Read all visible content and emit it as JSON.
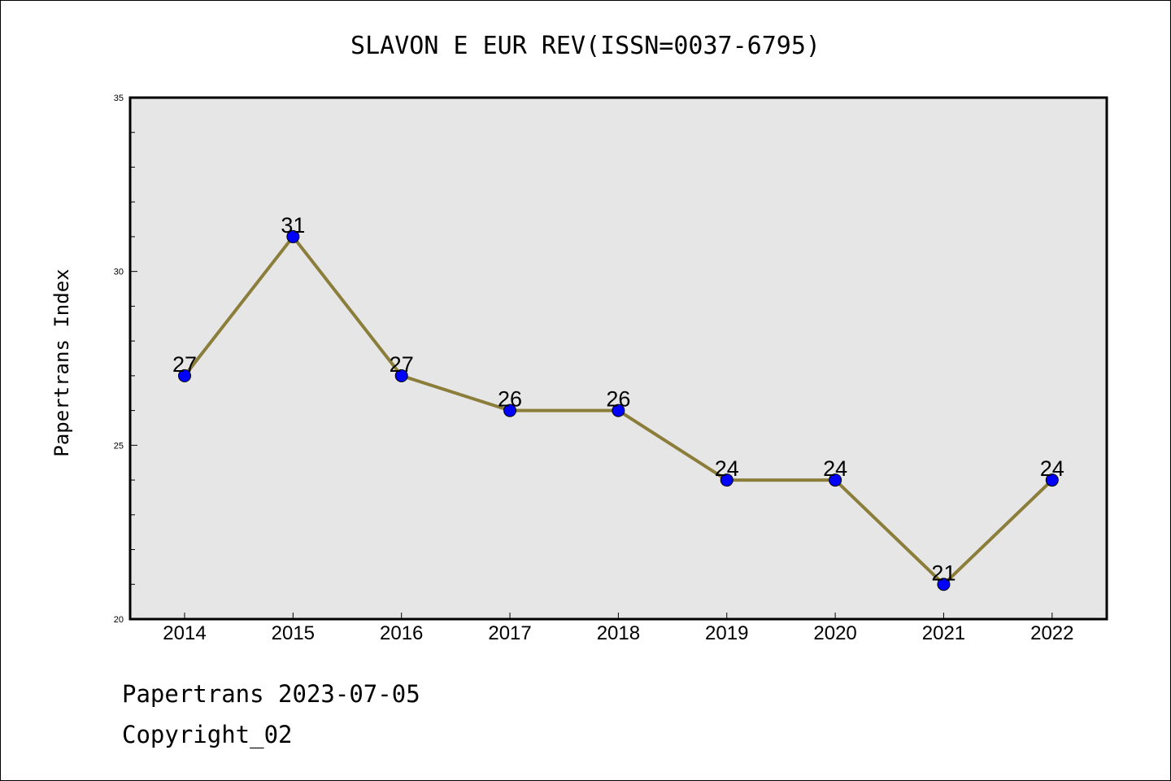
{
  "chart_data": {
    "type": "line",
    "title": "SLAVON E EUR REV(ISSN=0037-6795)",
    "xlabel": "",
    "ylabel": "Papertrans Index",
    "categories": [
      "2014",
      "2015",
      "2016",
      "2017",
      "2018",
      "2019",
      "2020",
      "2021",
      "2022"
    ],
    "series": [
      {
        "values": [
          27,
          31,
          27,
          26,
          26,
          24,
          24,
          21,
          24
        ]
      }
    ],
    "data_labels": [
      "27",
      "31",
      "27",
      "26",
      "26",
      "24",
      "24",
      "21",
      "24"
    ],
    "ylim": [
      20,
      35
    ],
    "yticks": [
      "20",
      "25",
      "30",
      "35"
    ],
    "line_color": "#8B7D3A",
    "marker_color": "#0000FF",
    "plot_background": "#E6E6E6",
    "grid": false,
    "legend": "none"
  },
  "footer": {
    "date_line": "Papertrans 2023-07-05",
    "copyright": "Copyright_02"
  }
}
